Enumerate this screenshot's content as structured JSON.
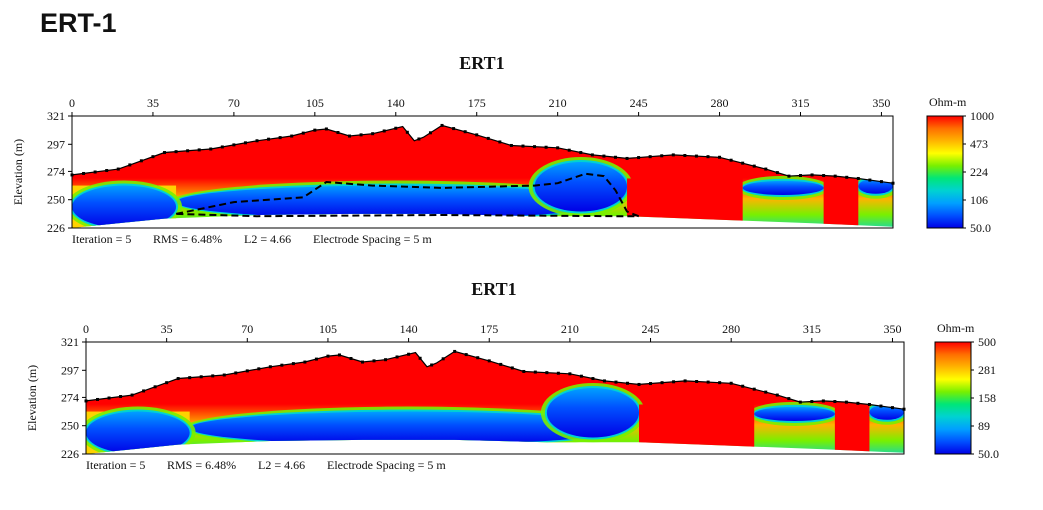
{
  "page_title": "ERT-1",
  "colors": {
    "scale": [
      "#0000e6",
      "#0050ff",
      "#00a0ff",
      "#00d2d2",
      "#00e678",
      "#78f000",
      "#ffff00",
      "#ffb400",
      "#ff6e00",
      "#ff0000"
    ],
    "topography_line": "#000000",
    "boundary_line": "#000000"
  },
  "chart_data": [
    {
      "type": "heatmap",
      "title": "ERT1",
      "xlabel": "",
      "ylabel": "Elevation (m)",
      "x_ticks": [
        "0",
        "35",
        "70",
        "105",
        "140",
        "175",
        "210",
        "245",
        "280",
        "315",
        "350"
      ],
      "y_ticks": [
        "321",
        "297",
        "274",
        "250",
        "226"
      ],
      "xlim": [
        0,
        355
      ],
      "ylim": [
        226,
        321
      ],
      "colorbar": {
        "unit": "Ohm-m",
        "labels": [
          "1000",
          "473",
          "224",
          "106",
          "50.0"
        ],
        "range": [
          50,
          1000
        ],
        "log_scale": true
      },
      "stats": {
        "iteration_text": "Iteration = 5",
        "rms_text": "RMS = 6.48%",
        "l2_text": "L2 = 4.66",
        "spacing_text": "Electrode Spacing = 5 m"
      },
      "topography": {
        "x": [
          0,
          20,
          40,
          60,
          80,
          95,
          105,
          110,
          120,
          130,
          143,
          148,
          152,
          160,
          175,
          190,
          210,
          225,
          240,
          260,
          280,
          300,
          310,
          320,
          330,
          340,
          355
        ],
        "elevation": [
          271,
          276,
          290,
          293,
          300,
          304,
          309,
          310,
          304,
          306,
          312,
          300,
          303,
          313,
          305,
          296,
          294,
          288,
          285,
          288,
          286,
          276,
          270,
          271,
          270,
          268,
          264
        ]
      },
      "bottom": {
        "x": [
          0,
          40,
          80,
          120,
          160,
          200,
          240,
          280,
          320,
          355
        ],
        "elevation": [
          226,
          234,
          237,
          238,
          238,
          236,
          236,
          233,
          230,
          227
        ]
      },
      "interpreted_boundary_dashed": true,
      "conductive_zones": [
        {
          "x_from": 45,
          "x_to": 235,
          "elev_from": 234,
          "elev_to": 262
        },
        {
          "x_from": 200,
          "x_to": 240,
          "elev_from": 240,
          "elev_to": 282
        },
        {
          "x_from": 0,
          "x_to": 45,
          "elev_from": 226,
          "elev_to": 262
        },
        {
          "x_from": 290,
          "x_to": 325,
          "elev_from": 254,
          "elev_to": 266
        },
        {
          "x_from": 340,
          "x_to": 355,
          "elev_from": 255,
          "elev_to": 268
        }
      ]
    },
    {
      "type": "heatmap",
      "title": "ERT1",
      "xlabel": "",
      "ylabel": "Elevation (m)",
      "x_ticks": [
        "0",
        "35",
        "70",
        "105",
        "140",
        "175",
        "210",
        "245",
        "280",
        "315",
        "350"
      ],
      "y_ticks": [
        "321",
        "297",
        "274",
        "250",
        "226"
      ],
      "xlim": [
        0,
        355
      ],
      "ylim": [
        226,
        321
      ],
      "colorbar": {
        "unit": "Ohm-m",
        "labels": [
          "500",
          "281",
          "158",
          "89",
          "50.0"
        ],
        "range": [
          50,
          500
        ],
        "log_scale": true
      },
      "stats": {
        "iteration_text": "Iteration = 5",
        "rms_text": "RMS = 6.48%",
        "l2_text": "L2 = 4.66",
        "spacing_text": "Electrode Spacing = 5 m"
      },
      "topography": {
        "x": [
          0,
          20,
          40,
          60,
          80,
          95,
          105,
          110,
          120,
          130,
          143,
          148,
          152,
          160,
          175,
          190,
          210,
          225,
          240,
          260,
          280,
          300,
          310,
          320,
          330,
          340,
          355
        ],
        "elevation": [
          271,
          276,
          290,
          293,
          300,
          304,
          309,
          310,
          304,
          306,
          312,
          300,
          303,
          313,
          305,
          296,
          294,
          288,
          285,
          288,
          286,
          276,
          270,
          271,
          270,
          268,
          264
        ]
      },
      "bottom": {
        "x": [
          0,
          40,
          80,
          120,
          160,
          200,
          240,
          280,
          320,
          355
        ],
        "elevation": [
          226,
          234,
          237,
          238,
          238,
          236,
          236,
          233,
          230,
          227
        ]
      },
      "interpreted_boundary_dashed": false,
      "conductive_zones": [
        {
          "x_from": 45,
          "x_to": 235,
          "elev_from": 234,
          "elev_to": 262
        },
        {
          "x_from": 200,
          "x_to": 240,
          "elev_from": 240,
          "elev_to": 282
        },
        {
          "x_from": 0,
          "x_to": 45,
          "elev_from": 226,
          "elev_to": 262
        },
        {
          "x_from": 290,
          "x_to": 325,
          "elev_from": 254,
          "elev_to": 266
        },
        {
          "x_from": 340,
          "x_to": 355,
          "elev_from": 255,
          "elev_to": 268
        }
      ]
    }
  ]
}
